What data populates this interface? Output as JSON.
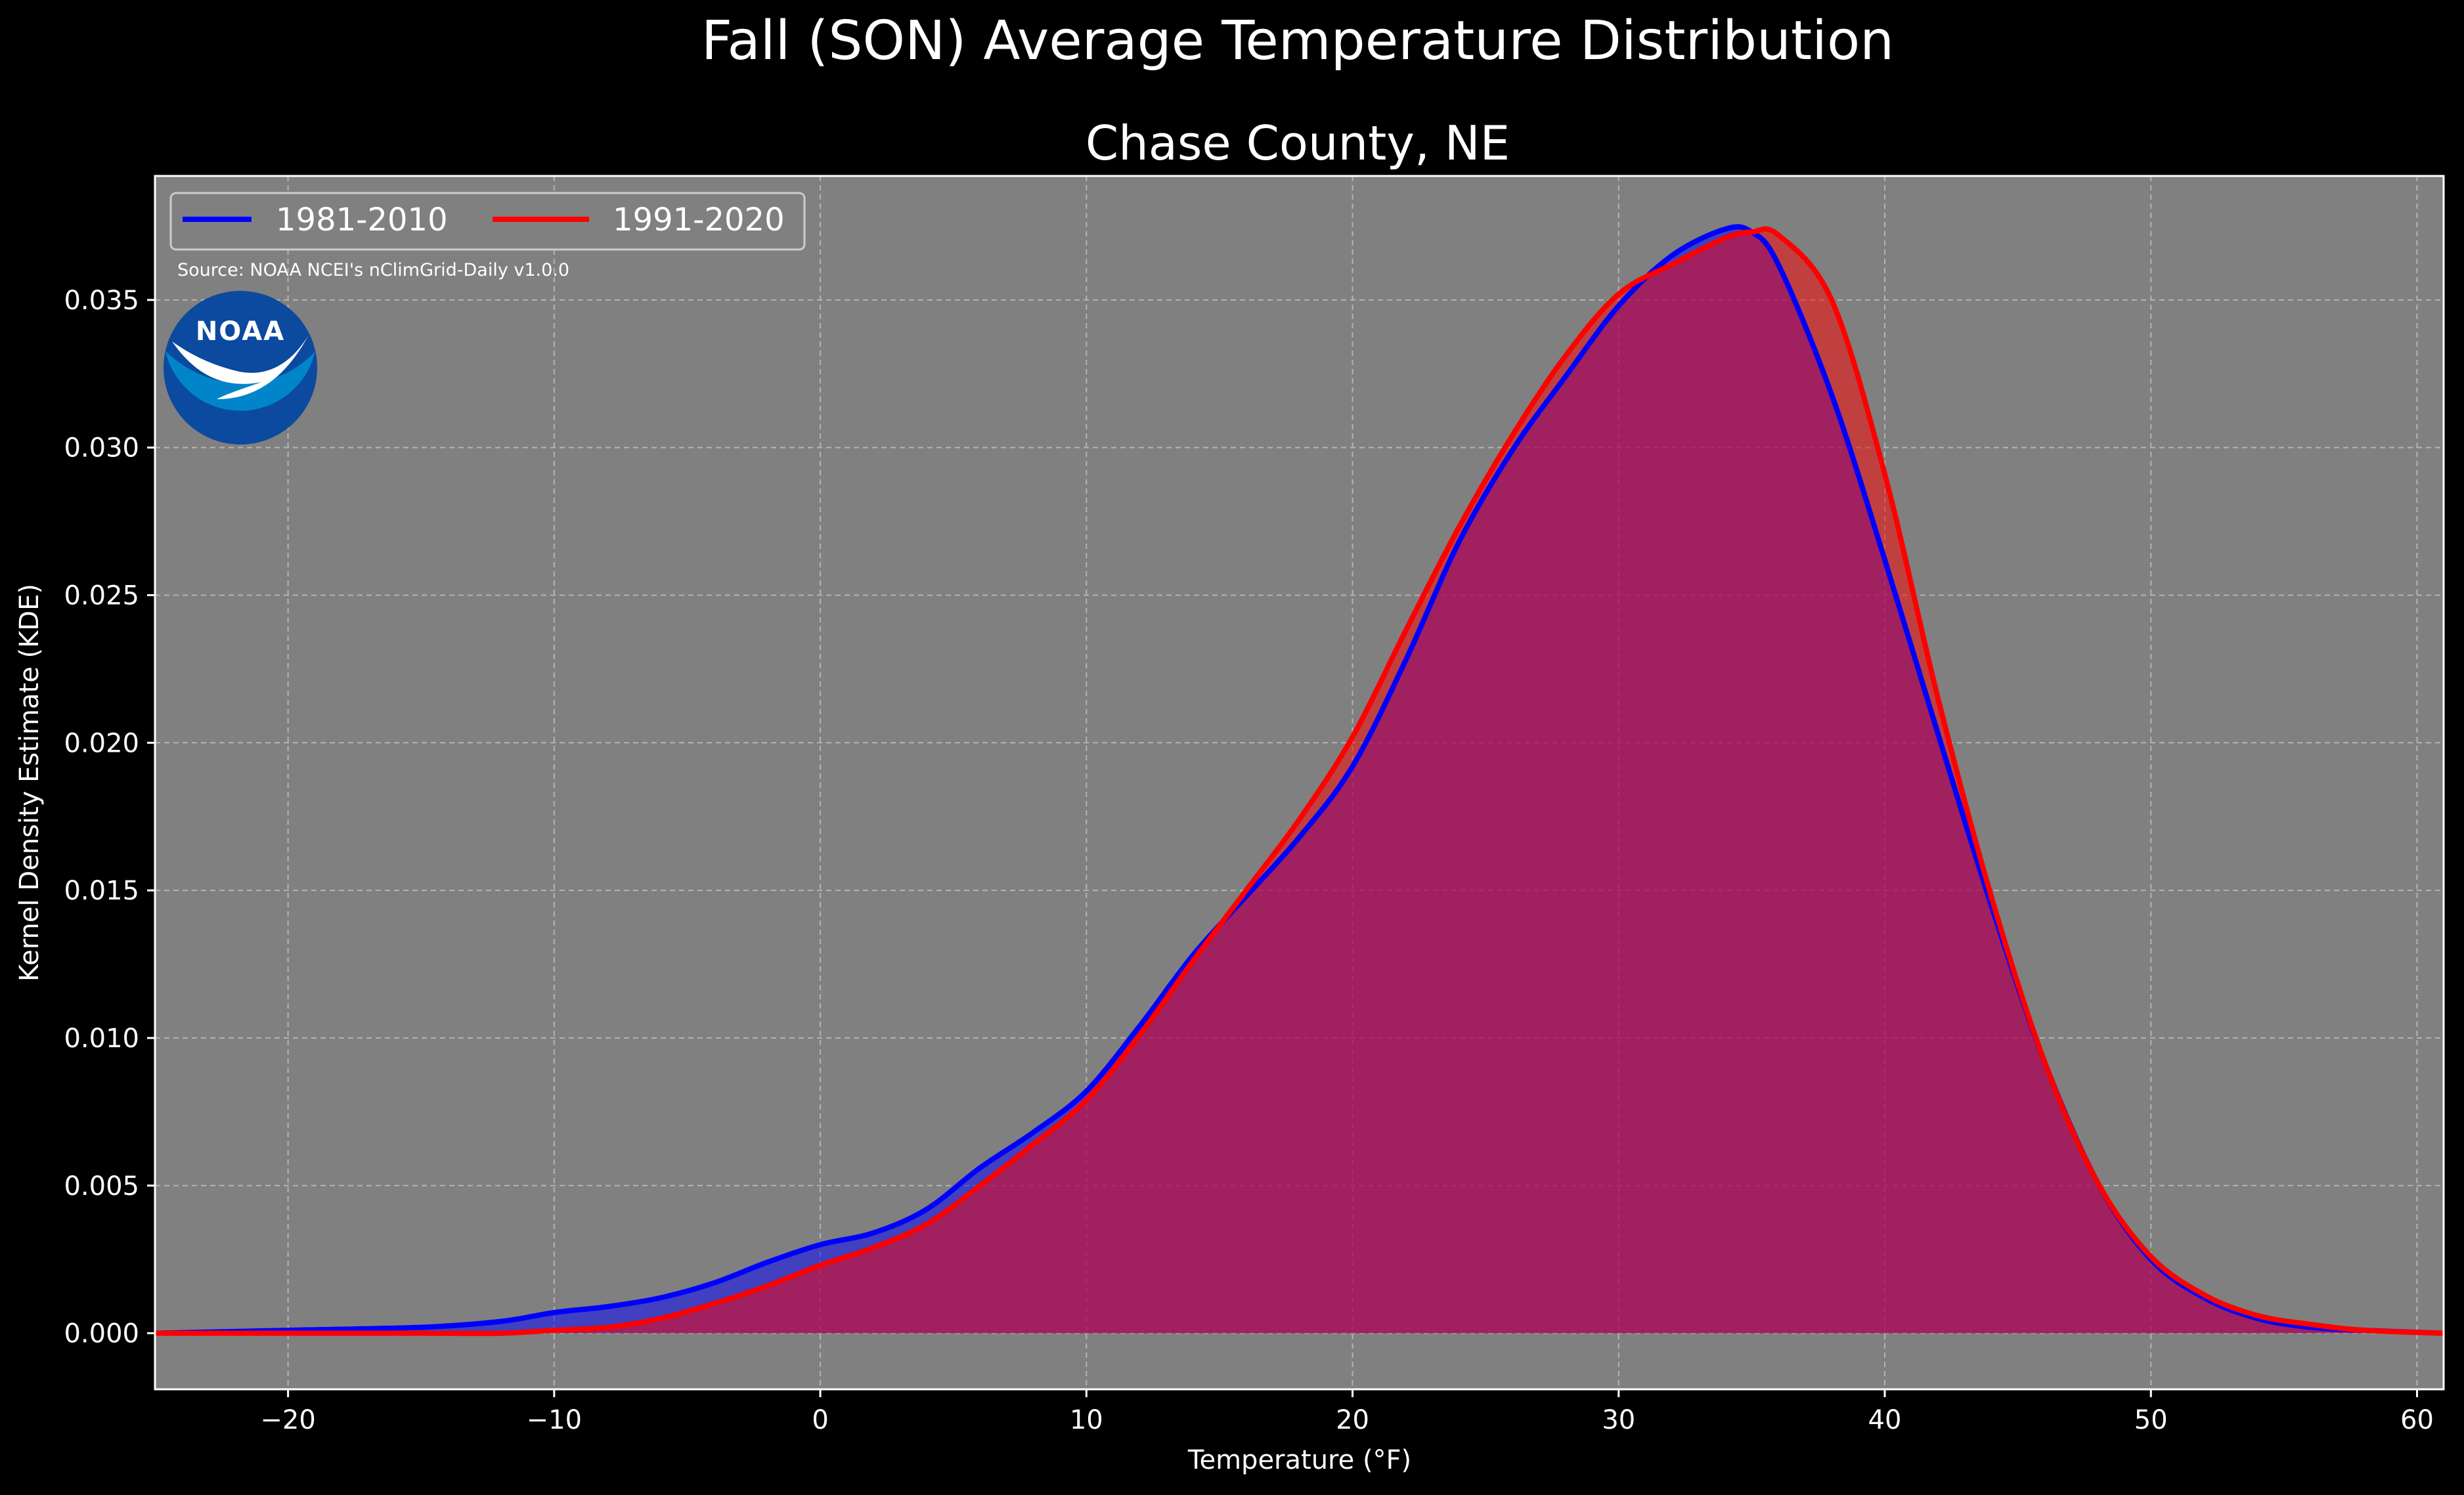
{
  "chart_data": {
    "type": "area",
    "title": "Fall (SON) Average Temperature Distribution",
    "subtitle": "Chase County, NE",
    "xlabel": "Temperature (°F)",
    "ylabel": "Kernel Density Estimate (KDE)",
    "xlim": [
      -25,
      61
    ],
    "ylim": [
      -0.0019,
      0.0392
    ],
    "xticks": [
      -20,
      -10,
      0,
      10,
      20,
      30,
      40,
      50,
      60
    ],
    "xtick_labels": [
      "−20",
      "−10",
      "0",
      "10",
      "20",
      "30",
      "40",
      "50",
      "60"
    ],
    "yticks": [
      0.0,
      0.005,
      0.01,
      0.015,
      0.02,
      0.025,
      0.03,
      0.035
    ],
    "ytick_labels": [
      "0.000",
      "0.005",
      "0.010",
      "0.015",
      "0.020",
      "0.025",
      "0.030",
      "0.035"
    ],
    "grid": true,
    "legend_position": "top-left",
    "legend_columns": 2,
    "background": "#808080",
    "series": [
      {
        "name": "1981-2010",
        "color": "#0000ff",
        "x": [
          -25,
          -20,
          -15,
          -12,
          -10,
          -8,
          -6,
          -4,
          -2,
          0,
          2,
          4,
          6,
          8,
          10,
          12,
          14,
          16,
          18,
          20,
          22,
          24,
          26,
          28,
          30,
          32,
          34,
          35,
          36,
          38,
          40,
          42,
          44,
          46,
          48,
          50,
          52,
          54,
          56,
          58,
          61
        ],
        "y": [
          0.0,
          0.0001,
          0.0002,
          0.0004,
          0.0007,
          0.0009,
          0.0012,
          0.0017,
          0.0024,
          0.003,
          0.0034,
          0.0042,
          0.0056,
          0.0068,
          0.0082,
          0.0104,
          0.0128,
          0.0148,
          0.0168,
          0.0192,
          0.0228,
          0.0268,
          0.0299,
          0.0324,
          0.0348,
          0.0365,
          0.0374,
          0.0373,
          0.0362,
          0.0318,
          0.0262,
          0.0203,
          0.0145,
          0.0092,
          0.0051,
          0.0025,
          0.0012,
          0.0005,
          0.0002,
          0.0001,
          0.0
        ]
      },
      {
        "name": "1991-2020",
        "color": "#ff0000",
        "x": [
          -25,
          -20,
          -15,
          -12,
          -10,
          -8,
          -6,
          -4,
          -2,
          0,
          2,
          4,
          6,
          8,
          10,
          12,
          14,
          16,
          18,
          20,
          22,
          24,
          26,
          28,
          30,
          32,
          34,
          35,
          36,
          38,
          40,
          42,
          44,
          46,
          48,
          50,
          52,
          54,
          56,
          58,
          61
        ],
        "y": [
          0.0,
          0.0,
          0.0,
          0.0,
          0.0001,
          0.0002,
          0.0005,
          0.001,
          0.0016,
          0.0023,
          0.0029,
          0.0037,
          0.005,
          0.0064,
          0.0079,
          0.0101,
          0.0126,
          0.015,
          0.0174,
          0.0202,
          0.0238,
          0.0273,
          0.0304,
          0.0331,
          0.0352,
          0.0362,
          0.0371,
          0.0373,
          0.0372,
          0.035,
          0.0291,
          0.0215,
          0.0148,
          0.0092,
          0.0051,
          0.0026,
          0.0013,
          0.0006,
          0.0003,
          0.0001,
          0.0
        ]
      }
    ],
    "annotations": [
      "Source: NOAA NCEI's nClimGrid-Daily v1.0.0"
    ],
    "logo": {
      "text": "NOAA",
      "outer_color": "#0b4a9e",
      "inner_color": "#0085ca"
    }
  }
}
